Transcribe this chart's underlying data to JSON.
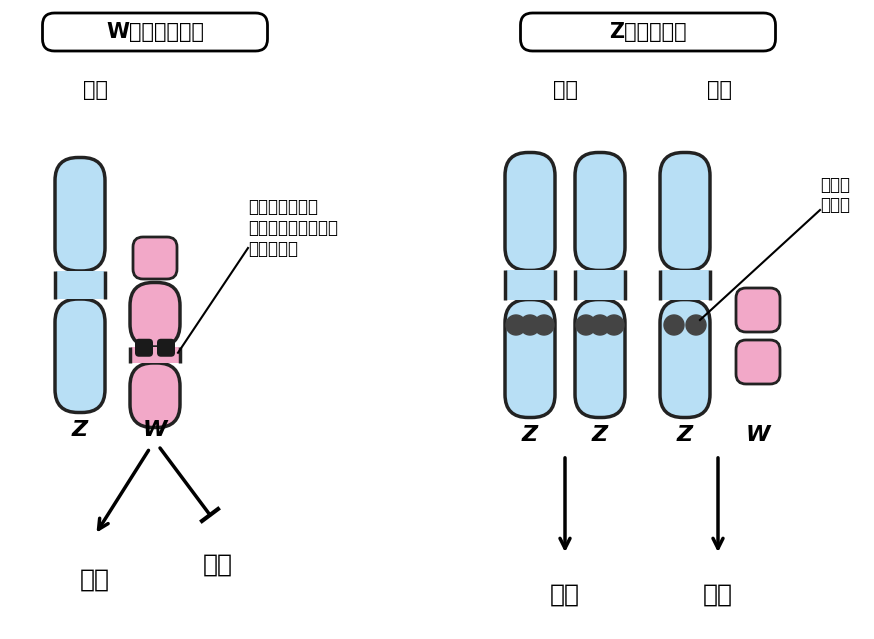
{
  "bg_color": "#ffffff",
  "blue_chrom_color": "#b8dff5",
  "blue_chrom_edge": "#222222",
  "pink_chrom_color": "#f2a8c8",
  "pink_chrom_edge": "#222222",
  "dot_color": "#444444",
  "title_left": "Wドミナント説",
  "title_right": "Z遣伝子量説",
  "label_mesu_left": "メス",
  "label_osu_right": "オス",
  "label_mesu_right": "メス",
  "gene_label_left": "卵巣決定遣伝子\n（あるいは精巣化抑\n制遣伝子）",
  "gene_label_right": "性決定\n遣伝子",
  "z_left": "Z",
  "w_left": "W",
  "z1_right": "Z",
  "z2_right": "Z",
  "z3_right": "Z",
  "w_right": "W",
  "ovary_left": "卵巣",
  "testis_left": "精巣",
  "testis_right": "精巣",
  "ovary_right": "卵巣"
}
